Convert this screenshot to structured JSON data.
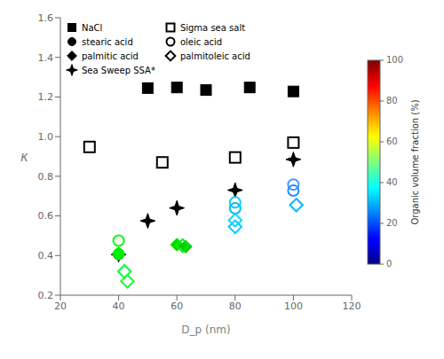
{
  "chart_data": {
    "type": "scatter",
    "xlabel": "D_p (nm)",
    "ylabel": "κ",
    "xlim": [
      20,
      120
    ],
    "ylim": [
      0.2,
      1.6
    ],
    "xticks": [
      20,
      40,
      60,
      80,
      100,
      120
    ],
    "yticks": [
      0.2,
      0.4,
      0.6,
      0.8,
      {
        "value": 1.0,
        "label": "1.0"
      },
      1.2,
      1.4,
      1.6
    ],
    "legend": "upper left",
    "series": [
      {
        "name": "NaCl",
        "marker": "square",
        "color": "black",
        "x": [
          50,
          60,
          70,
          85,
          100
        ],
        "y": [
          1.245,
          1.248,
          1.235,
          1.248,
          1.228
        ]
      },
      {
        "name": "stearic acid",
        "marker": "circle",
        "colors": [
          "#00dd00",
          "#00cc00"
        ],
        "x": [
          40,
          40
        ],
        "y": [
          0.41,
          0.405
        ]
      },
      {
        "name": "palmitic acid",
        "marker": "diamond",
        "colors": [
          "#00ee00",
          "#00dd00",
          "#00cc00"
        ],
        "x": [
          40,
          60,
          63
        ],
        "y": [
          0.41,
          0.455,
          0.445
        ]
      },
      {
        "name": "Sea Sweep SSA*",
        "marker": "star",
        "color": "black",
        "x": [
          40,
          50,
          60,
          80,
          100
        ],
        "y": [
          0.405,
          0.575,
          0.64,
          0.73,
          0.885
        ]
      },
      {
        "name": "Sigma sea salt",
        "marker": "open_square",
        "color": "black",
        "x": [
          30,
          55,
          80,
          100
        ],
        "y": [
          0.948,
          0.87,
          0.895,
          0.97
        ]
      },
      {
        "name": "oleic acid",
        "marker": "open_circle",
        "colors": [
          "#00ff00",
          "#00ccff",
          "#00bbee",
          "#4499ff",
          "#3388ff"
        ],
        "x": [
          40,
          80,
          80,
          100,
          100
        ],
        "y": [
          0.475,
          0.668,
          0.638,
          0.758,
          0.728
        ]
      },
      {
        "name": "palmitoleic acid",
        "marker": "open_diamond",
        "colors": [
          "#00ff44",
          "#11ff33",
          "#00ee00",
          "#00ddff",
          "#00ccff",
          "#00bbff"
        ],
        "x": [
          42,
          43,
          62,
          80,
          80,
          101
        ],
        "y": [
          0.32,
          0.27,
          0.45,
          0.578,
          0.545,
          0.655
        ]
      }
    ],
    "colorbar_lim": [
      0,
      100
    ],
    "colorbar_ticks": [
      0,
      20,
      40,
      60,
      80,
      100
    ],
    "colorbar_label": "Organic volume fraction (%)"
  }
}
